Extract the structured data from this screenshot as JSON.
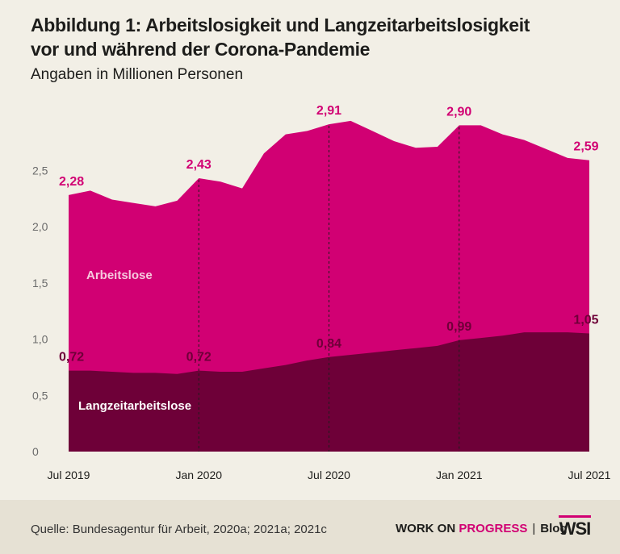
{
  "header": {
    "title_line1": "Abbildung 1: Arbeitslosigkeit und Langzeitarbeitslosigkeit",
    "title_line2": "vor und während der Corona-Pandemie",
    "subtitle": "Angaben in Millionen Personen"
  },
  "footer": {
    "source": "Quelle: Bundesagentur für Arbeit, 2020a; 2021a; 2021c",
    "brand_part1": "WORK ON",
    "brand_part2": "PROGRESS",
    "brand_sep": "|",
    "brand_part3": "Blog",
    "logo": "WSI"
  },
  "colors": {
    "arbeitslose": "#d10073",
    "langzeit": "#6e0038",
    "background": "#f2efe6",
    "footer": "#e6e1d4",
    "label_light": "#f6c9de",
    "axis_text": "#6b6b6b"
  },
  "chart_data": {
    "type": "area",
    "x": [
      "Jul 2019",
      "Aug 2019",
      "Sep 2019",
      "Okt 2019",
      "Nov 2019",
      "Dez 2019",
      "Jan 2020",
      "Feb 2020",
      "Mär 2020",
      "Apr 2020",
      "Mai 2020",
      "Jun 2020",
      "Jul 2020",
      "Aug 2020",
      "Sep 2020",
      "Okt 2020",
      "Nov 2020",
      "Dez 2020",
      "Jan 2021",
      "Feb 2021",
      "Mär 2021",
      "Apr 2021",
      "Mai 2021",
      "Jun 2021",
      "Jul 2021"
    ],
    "x_tick_labels": [
      "Jul 2019",
      "Jan 2020",
      "Jul 2020",
      "Jan 2021",
      "Jul 2021"
    ],
    "x_tick_indices": [
      0,
      6,
      12,
      18,
      24
    ],
    "ylim": [
      0,
      3.0
    ],
    "y_ticks": [
      0,
      0.5,
      1.0,
      1.5,
      2.0,
      2.5
    ],
    "y_tick_labels": [
      "0",
      "0,5",
      "1,0",
      "1,5",
      "2,0",
      "2,5"
    ],
    "grid": false,
    "series": [
      {
        "name": "Arbeitslose",
        "values": [
          2.28,
          2.32,
          2.24,
          2.21,
          2.18,
          2.23,
          2.43,
          2.4,
          2.34,
          2.65,
          2.82,
          2.85,
          2.91,
          2.94,
          2.85,
          2.76,
          2.7,
          2.71,
          2.9,
          2.9,
          2.82,
          2.77,
          2.69,
          2.61,
          2.59
        ]
      },
      {
        "name": "Langzeitarbeitslose",
        "values": [
          0.72,
          0.72,
          0.71,
          0.7,
          0.7,
          0.69,
          0.72,
          0.71,
          0.71,
          0.74,
          0.77,
          0.81,
          0.84,
          0.86,
          0.88,
          0.9,
          0.92,
          0.94,
          0.99,
          1.01,
          1.03,
          1.06,
          1.06,
          1.06,
          1.05
        ]
      }
    ],
    "annotations": [
      {
        "series": 0,
        "index": 0,
        "text": "2,28"
      },
      {
        "series": 0,
        "index": 6,
        "text": "2,43"
      },
      {
        "series": 0,
        "index": 12,
        "text": "2,91"
      },
      {
        "series": 0,
        "index": 18,
        "text": "2,90"
      },
      {
        "series": 0,
        "index": 24,
        "text": "2,59"
      },
      {
        "series": 1,
        "index": 0,
        "text": "0,72"
      },
      {
        "series": 1,
        "index": 6,
        "text": "0,72"
      },
      {
        "series": 1,
        "index": 12,
        "text": "0,84"
      },
      {
        "series": 1,
        "index": 18,
        "text": "0,99"
      },
      {
        "series": 1,
        "index": 24,
        "text": "1,05"
      }
    ],
    "vertical_markers": [
      6,
      12,
      18
    ]
  }
}
